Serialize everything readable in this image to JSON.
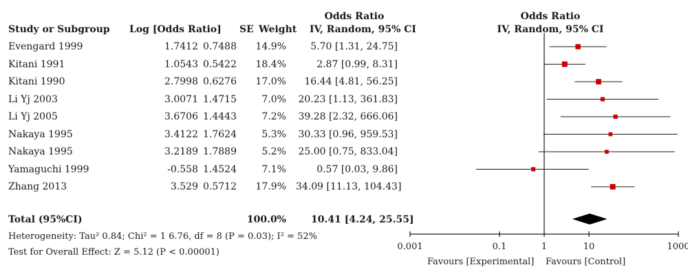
{
  "header": {
    "study": "Study or Subgroup",
    "log_or": "Log [Odds Ratio]",
    "se": "SE",
    "weight": "Weight",
    "or_title": "Odds Ratio",
    "or_method": "IV, Random, 95% CI",
    "plot_title": "Odds Ratio",
    "plot_method": "IV, Random, 95% CI"
  },
  "studies": [
    {
      "name": "Evengard 1999",
      "log_or": "1.7412",
      "se": "0.7488",
      "weight": "14.9%",
      "ci_text": "5.70 [1.31, 24.75]"
    },
    {
      "name": "Kitani 1991",
      "log_or": "1.0543",
      "se": "0.5422",
      "weight": "18.4%",
      "ci_text": "2.87 [0.99, 8.31]"
    },
    {
      "name": "Kitani 1990",
      "log_or": "2.7998",
      "se": "0.6276",
      "weight": "17.0%",
      "ci_text": "16.44 [4.81, 56.25]"
    },
    {
      "name": "Li Yj 2003",
      "log_or": "3.0071",
      "se": "1.4715",
      "weight": "7.0%",
      "ci_text": "20.23 [1.13, 361.83]"
    },
    {
      "name": "Li Yj 2005",
      "log_or": "3.6706",
      "se": "1.4443",
      "weight": "7.2%",
      "ci_text": "39.28 [2.32, 666.06]"
    },
    {
      "name": "Nakaya 1995",
      "log_or": "3.4122",
      "se": "1.7624",
      "weight": "5.3%",
      "ci_text": "30.33 [0.96, 959.53]"
    },
    {
      "name": "Nakaya 1995",
      "log_or": "3.2189",
      "se": "1.7889",
      "weight": "5.2%",
      "ci_text": "25.00 [0.75, 833.04]"
    },
    {
      "name": "Yamaguchi 1999",
      "log_or": "-0.558",
      "se": "1.4524",
      "weight": "7.1%",
      "ci_text": "0.57 [0.03, 9.86]"
    },
    {
      "name": "Zhang 2013",
      "log_or": "3.529",
      "se": "0.5712",
      "weight": "17.9%",
      "ci_text": "34.09 [11.13, 104.43]"
    }
  ],
  "total": {
    "label": "Total (95%CI)",
    "weight": "100.0%",
    "ci_text": "10.41 [4.24, 25.55]"
  },
  "heterogeneity": "Heterogeneity: Tau² 0.84; Chi² = 1 6.76, df = 8 (P = 0.03); I² = 52%",
  "overall_effect": "Test for Overall Effect: Z = 5.12 (P < 0.00001)",
  "axis": {
    "favours_left": "Favours [Experimental]",
    "favours_right": "Favours [Control]"
  },
  "chart_data": {
    "type": "scatter",
    "scale": "log",
    "xlim": [
      0.001,
      1000
    ],
    "xticks": [
      0.001,
      0.1,
      1,
      10,
      1000
    ],
    "xtick_labels": [
      "0.001",
      "0.1",
      "1",
      "10",
      "1000"
    ],
    "reference_line": 1,
    "points": [
      {
        "or": 5.7,
        "lo": 1.31,
        "hi": 24.75,
        "weight": 14.9
      },
      {
        "or": 2.87,
        "lo": 0.99,
        "hi": 8.31,
        "weight": 18.4
      },
      {
        "or": 16.44,
        "lo": 4.81,
        "hi": 56.25,
        "weight": 17.0
      },
      {
        "or": 20.23,
        "lo": 1.13,
        "hi": 361.83,
        "weight": 7.0
      },
      {
        "or": 39.28,
        "lo": 2.32,
        "hi": 666.06,
        "weight": 7.2
      },
      {
        "or": 30.33,
        "lo": 0.96,
        "hi": 959.53,
        "weight": 5.3
      },
      {
        "or": 25.0,
        "lo": 0.75,
        "hi": 833.04,
        "weight": 5.2
      },
      {
        "or": 0.57,
        "lo": 0.03,
        "hi": 9.86,
        "weight": 7.1
      },
      {
        "or": 34.09,
        "lo": 11.13,
        "hi": 104.43,
        "weight": 17.9
      }
    ],
    "pooled": {
      "or": 10.41,
      "lo": 4.24,
      "hi": 25.55
    },
    "colors": {
      "marker": "#cc0000",
      "line": "#1a1a1a",
      "diamond": "#000000"
    }
  }
}
